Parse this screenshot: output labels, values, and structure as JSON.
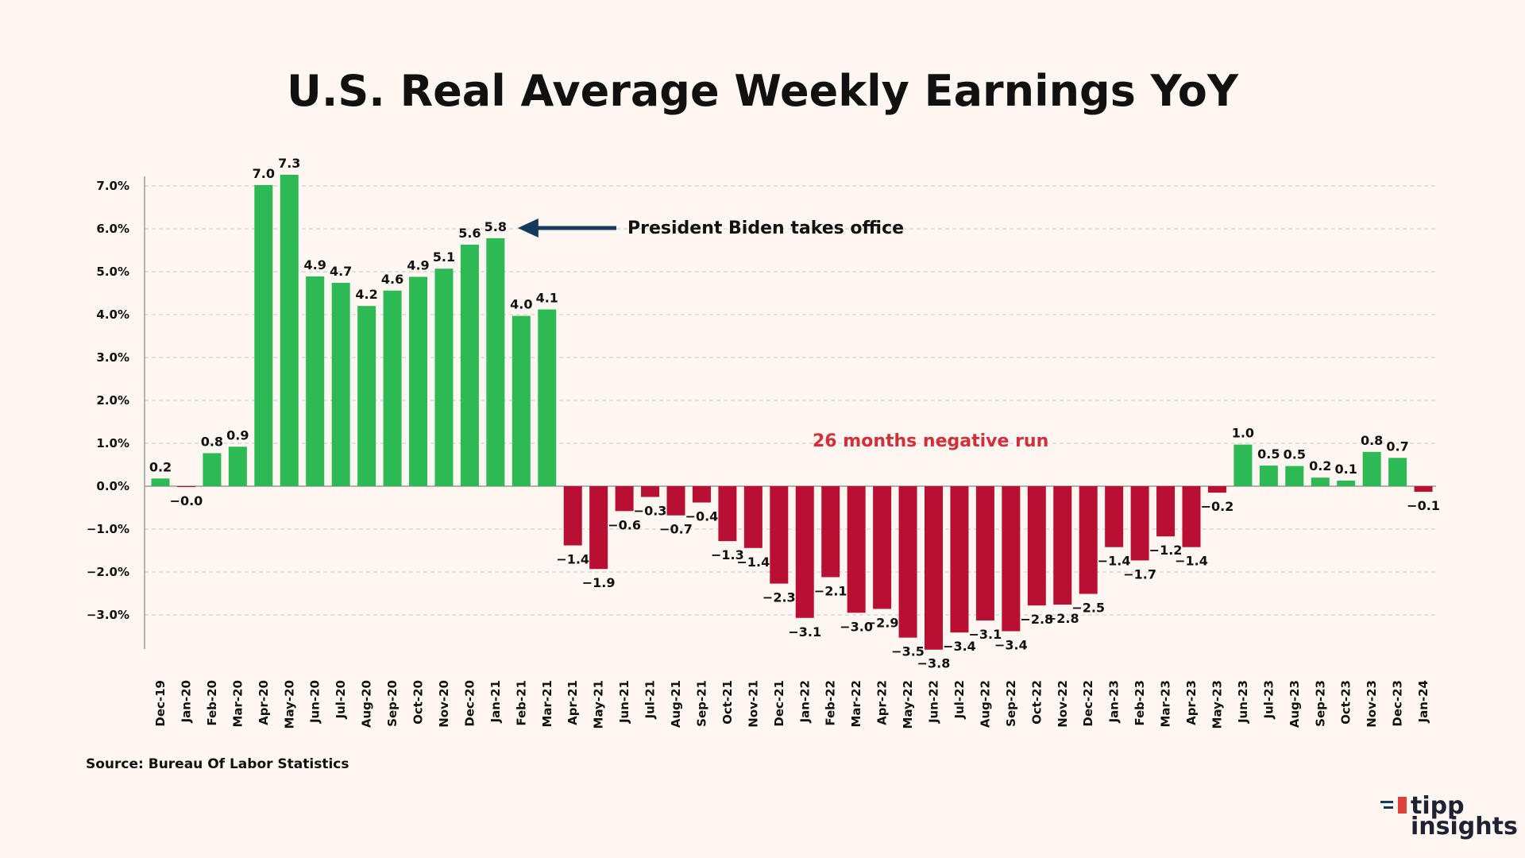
{
  "brand": {
    "logo_line1": "tipp",
    "logo_line2": "insights"
  },
  "colors": {
    "positive": "#2dba55",
    "negative": "#b80f33",
    "arrow": "#163a5c",
    "negative_text": "#d1303a",
    "grid": "#c9c9c9",
    "axis": "#9a9a9a",
    "logo_accent": "#e0403a"
  },
  "chart_data": {
    "type": "bar",
    "title": "U.S. Real Average Weekly Earnings YoY",
    "source": "Source: Bureau Of Labor Statistics",
    "categories": [
      "Dec-19",
      "Jan-20",
      "Feb-20",
      "Mar-20",
      "Apr-20",
      "May-20",
      "Jun-20",
      "Jul-20",
      "Aug-20",
      "Sep-20",
      "Oct-20",
      "Nov-20",
      "Dec-20",
      "Jan-21",
      "Feb-21",
      "Mar-21",
      "Apr-21",
      "May-21",
      "Jun-21",
      "Jul-21",
      "Aug-21",
      "Sep-21",
      "Oct-21",
      "Nov-21",
      "Dec-21",
      "Jan-22",
      "Feb-22",
      "Mar-22",
      "Apr-22",
      "May-22",
      "Jun-22",
      "Jul-22",
      "Aug-22",
      "Sep-22",
      "Oct-22",
      "Nov-22",
      "Dec-22",
      "Jan-23",
      "Feb-23",
      "Mar-23",
      "Apr-23",
      "May-23",
      "Jun-23",
      "Jul-23",
      "Aug-23",
      "Sep-23",
      "Oct-23",
      "Nov-23",
      "Dec-23",
      "Jan-24"
    ],
    "values": [
      0.18,
      -0.02,
      0.77,
      0.92,
      7.02,
      7.26,
      4.89,
      4.74,
      4.2,
      4.56,
      4.88,
      5.07,
      5.63,
      5.78,
      3.97,
      4.12,
      -1.38,
      -1.93,
      -0.58,
      -0.25,
      -0.68,
      -0.38,
      -1.28,
      -1.44,
      -2.27,
      -3.07,
      -2.12,
      -2.95,
      -2.86,
      -3.53,
      -3.81,
      -3.41,
      -3.13,
      -3.38,
      -2.78,
      -2.76,
      -2.51,
      -1.42,
      -1.73,
      -1.17,
      -1.42,
      -0.15,
      0.97,
      0.48,
      0.47,
      0.2,
      0.13,
      0.8,
      0.66,
      -0.13
    ],
    "data_labels": [
      "0.2",
      "−0.0",
      "0.8",
      "0.9",
      "7.0",
      "7.3",
      "4.9",
      "4.7",
      "4.2",
      "4.6",
      "4.9",
      "5.1",
      "5.6",
      "5.8",
      "4.0",
      "4.1",
      "−1.4",
      "−1.9",
      "−0.6",
      "−0.3",
      "−0.7",
      "−0.4",
      "−1.3",
      "−1.4",
      "−2.3",
      "−3.1",
      "−2.1",
      "−3.0",
      "−2.9",
      "−3.5",
      "−3.8",
      "−3.4",
      "−3.1",
      "−3.4",
      "−2.8",
      "−2.8",
      "−2.5",
      "−1.4",
      "−1.7",
      "−1.2",
      "−1.4",
      "−0.2",
      "1.0",
      "0.5",
      "0.5",
      "0.2",
      "0.1",
      "0.8",
      "0.7",
      "−0.1"
    ],
    "ylim": [
      -3.8,
      7.4
    ],
    "y_ticks": [
      7,
      6,
      5,
      4,
      3,
      2,
      1,
      0,
      -1,
      -2,
      -3
    ],
    "y_tick_labels": [
      "7.0%",
      "6.0%",
      "5.0%",
      "4.0%",
      "3.0%",
      "2.0%",
      "1.0%",
      "0.0%",
      "−1.0%",
      "−2.0%",
      "−3.0%"
    ],
    "grid": true,
    "xlabel": "",
    "ylabel": "",
    "annotations": [
      {
        "text": "President Biden takes office",
        "target_category": "Jan-21",
        "style": "arrow"
      },
      {
        "text": "26 months negative run",
        "style": "highlight-negative"
      }
    ]
  }
}
